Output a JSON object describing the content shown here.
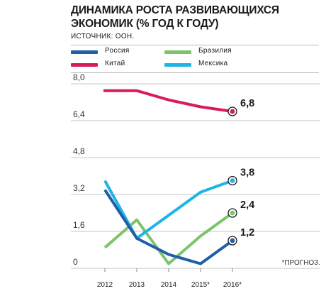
{
  "header": {
    "title_line1": "ДИНАМИКА РОСТА РАЗВИВАЮЩИХСЯ",
    "title_line2": "ЭКОНОМИК (% ГОД К ГОДУ)",
    "source": "ИСТОЧНИК: ООН."
  },
  "note": "*ПРОГНОЗ.",
  "chart_data": {
    "type": "line",
    "title": "ДИНАМИКА РОСТА РАЗВИВАЮЩИХСЯ ЭКОНОМИК (% ГОД К ГОДУ)",
    "x": [
      "2012",
      "2013",
      "2014",
      "2015*",
      "2016*"
    ],
    "ylim": [
      0,
      8.0
    ],
    "yticks": [
      "0",
      "1,6",
      "3,2",
      "4,8",
      "6,4",
      "8,0"
    ],
    "ytick_values": [
      0,
      1.6,
      3.2,
      4.8,
      6.4,
      8.0
    ],
    "grid": "horizontal",
    "legend_position": "top",
    "series": [
      {
        "name": "Россия",
        "color": "#1f5ea8",
        "values": [
          3.4,
          1.3,
          0.6,
          0.2,
          1.2
        ],
        "end_label": "1,2",
        "start_offset": 0
      },
      {
        "name": "Бразилия",
        "color": "#7cc36a",
        "values": [
          0.9,
          2.1,
          0.2,
          1.4,
          2.4
        ],
        "end_label": "2,4",
        "start_offset": 0
      },
      {
        "name": "Китай",
        "color": "#d81b5a",
        "values": [
          7.7,
          7.7,
          7.3,
          7.0,
          6.8
        ],
        "end_label": "6,8",
        "start_offset": 0
      },
      {
        "name": "Мексика",
        "color": "#1fb4e6",
        "values": [
          3.8,
          1.3,
          2.3,
          3.3,
          3.8
        ],
        "end_label": "3,8",
        "start_offset": 0
      }
    ]
  }
}
